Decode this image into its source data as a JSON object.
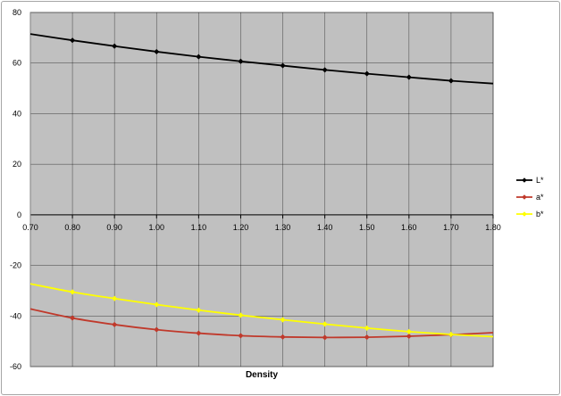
{
  "chart_data": {
    "type": "line",
    "title": "",
    "xlabel": "Density",
    "ylabel": "",
    "x": [
      0.7,
      0.8,
      0.9,
      1.0,
      1.1,
      1.2,
      1.3,
      1.4,
      1.5,
      1.6,
      1.7,
      1.8
    ],
    "x_tick_labels": [
      "0.70",
      "0.80",
      "0.90",
      "1.00",
      "1.10",
      "1.20",
      "1.30",
      "1.40",
      "1.50",
      "1.60",
      "1.70",
      "1.80"
    ],
    "xlim": [
      0.7,
      1.8
    ],
    "ylim": [
      -60,
      80
    ],
    "y_ticks": [
      80,
      60,
      40,
      20,
      0,
      -20,
      -40,
      -60
    ],
    "grid": true,
    "legend_position": "right",
    "plot_background": "#c0c0c0",
    "series": [
      {
        "name": "L*",
        "color": "#000000",
        "values": [
          71.5,
          69.0,
          66.7,
          64.5,
          62.5,
          60.7,
          59.0,
          57.3,
          55.8,
          54.4,
          53.0,
          51.9
        ],
        "markers_at": [
          1,
          2,
          3,
          4,
          5,
          6,
          7,
          8,
          9,
          10
        ]
      },
      {
        "name": "a*",
        "color": "#c0392b",
        "values": [
          -37.2,
          -40.8,
          -43.4,
          -45.4,
          -46.8,
          -47.8,
          -48.3,
          -48.5,
          -48.4,
          -48.0,
          -47.4,
          -46.6
        ],
        "markers_at": [
          1,
          2,
          3,
          4,
          5,
          6,
          7,
          8,
          9,
          10
        ]
      },
      {
        "name": "b*",
        "color": "#ffff00",
        "values": [
          -27.3,
          -30.5,
          -33.1,
          -35.5,
          -37.7,
          -39.7,
          -41.5,
          -43.2,
          -44.8,
          -46.2,
          -47.3,
          -48.2
        ],
        "markers_at": [
          1,
          2,
          3,
          4,
          5,
          6,
          7,
          8,
          9,
          10
        ]
      }
    ]
  }
}
